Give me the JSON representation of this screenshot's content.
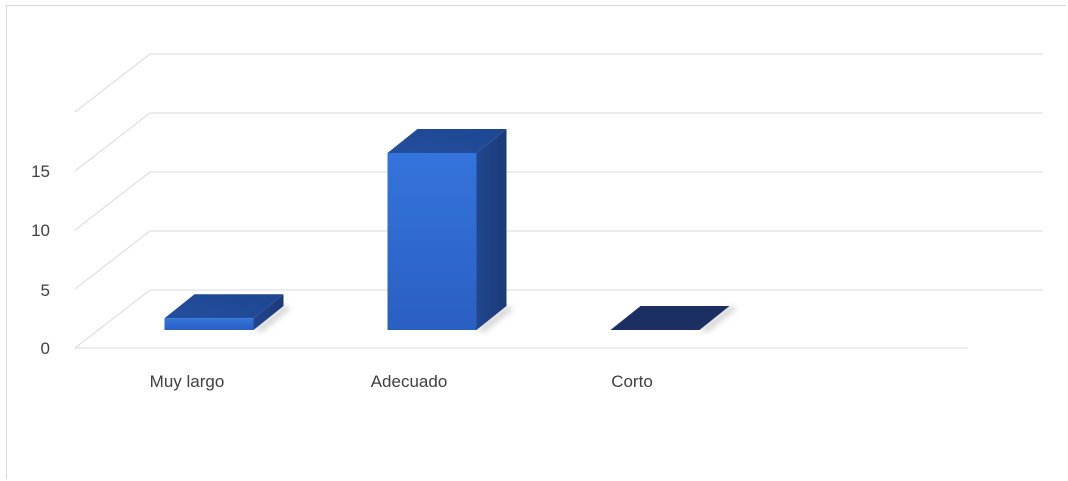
{
  "chart_data": {
    "type": "bar",
    "style": "3d-column",
    "categories": [
      "Muy largo",
      "Adecuado",
      "Corto"
    ],
    "values": [
      1,
      15,
      0
    ],
    "y_ticks": [
      "0",
      "5",
      "10",
      "15"
    ],
    "ylim": [
      0,
      20
    ],
    "grid": true,
    "legend": "none",
    "colors": {
      "bar_front": "#2f6bd6",
      "bar_top": "#1f4ea3",
      "bar_side": "#1e3f86",
      "zero_bar": "#1b2f63",
      "grid": "#d9d9d9",
      "text": "#404040"
    }
  }
}
